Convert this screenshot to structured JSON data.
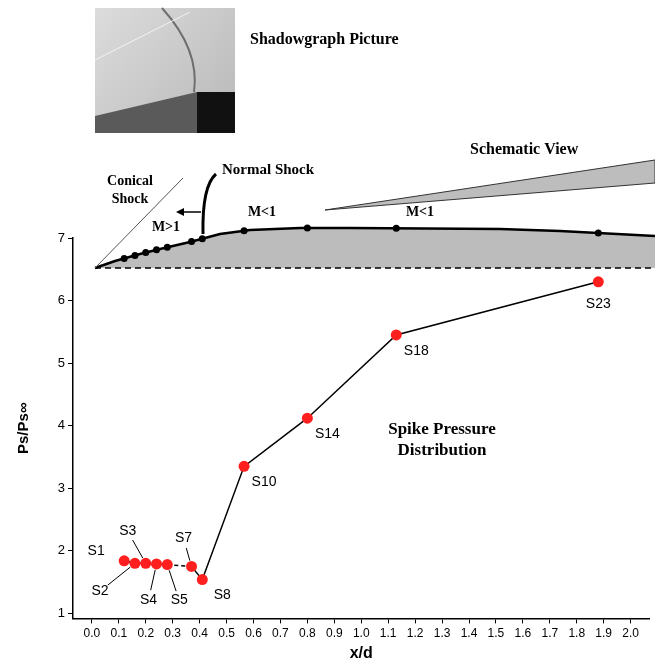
{
  "chart_data": {
    "type": "line",
    "x_label": "x/d",
    "y_label": "Ps/Ps∞",
    "x": [
      0.12,
      0.16,
      0.2,
      0.24,
      0.28,
      0.37,
      0.41,
      0.565,
      0.8,
      1.13,
      1.88
    ],
    "values": [
      1.84,
      1.8,
      1.8,
      1.79,
      1.78,
      1.75,
      1.54,
      3.35,
      4.12,
      5.45,
      6.3
    ],
    "point_labels": [
      "S1",
      "S2",
      "S3",
      "S4",
      "S5",
      "S7",
      "S8",
      "S10",
      "S14",
      "S18",
      "S23"
    ],
    "color": "#ff1f1f",
    "marker": "circle",
    "xlim": [
      -0.07,
      2.07
    ],
    "xticks": [
      {
        "value": 0,
        "label": "0.0"
      },
      0.1,
      0.2,
      0.3,
      0.4,
      0.5,
      0.6,
      0.7,
      0.8,
      0.9,
      {
        "value": 1,
        "label": "1.0"
      },
      1.1,
      1.2,
      1.3,
      1.4,
      1.5,
      1.6,
      1.7,
      1.8,
      1.9,
      {
        "value": 2,
        "label": "2.0"
      }
    ],
    "ylim": [
      0.92,
      7
    ],
    "yticks": [
      1,
      2,
      3,
      4,
      5,
      6,
      7
    ],
    "grid": false,
    "annotations": [
      "Spike Pressure Distribution"
    ]
  },
  "figure": {
    "photo_title": "Shadowgraph Picture",
    "schematic": {
      "title": "Schematic View",
      "conical_shock": "Conical Shock",
      "normal_shock": "Normal Shock",
      "upstream_mach": "M>1",
      "downstream_mach": [
        "M<1",
        "M<1"
      ]
    }
  }
}
